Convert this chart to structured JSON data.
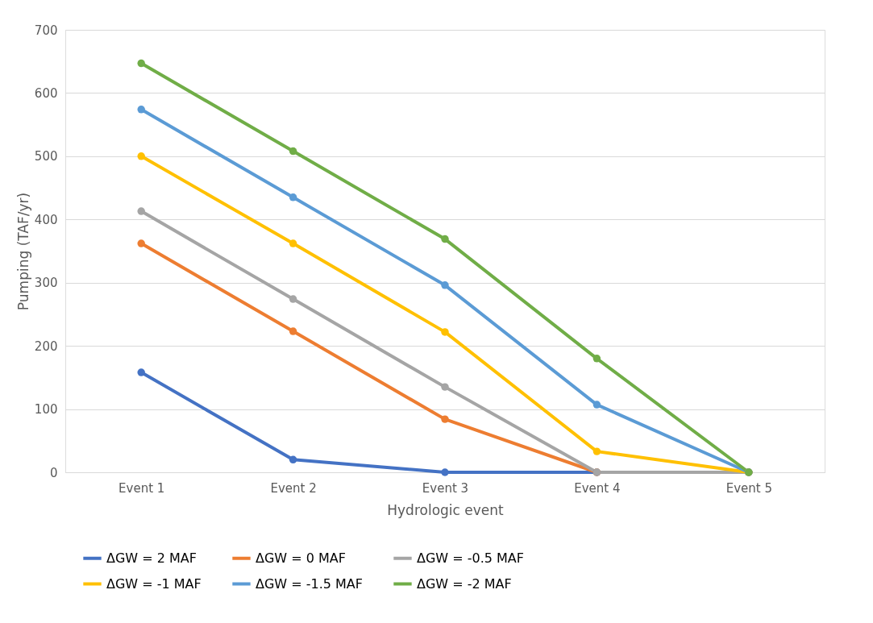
{
  "chart_data": {
    "type": "line",
    "xlabel": "Hydrologic event",
    "ylabel": "Pumping (TAF/yr)",
    "categories": [
      "Event 1",
      "Event 2",
      "Event 3",
      "Event 4",
      "Event 5"
    ],
    "series": [
      {
        "name": "ΔGW = 2 MAF",
        "color": "#4472c4",
        "values": [
          158,
          20,
          0,
          0,
          0
        ]
      },
      {
        "name": "ΔGW = 0 MAF",
        "color": "#ed7d31",
        "values": [
          362,
          223,
          84,
          0,
          0
        ]
      },
      {
        "name": "ΔGW = -0.5 MAF",
        "color": "#a5a5a5",
        "values": [
          413,
          274,
          135,
          0,
          0
        ]
      },
      {
        "name": "ΔGW = -1 MAF",
        "color": "#ffc000",
        "values": [
          500,
          362,
          222,
          33,
          0
        ]
      },
      {
        "name": "ΔGW = -1.5 MAF",
        "color": "#5b9bd5",
        "values": [
          574,
          435,
          296,
          107,
          0
        ]
      },
      {
        "name": "ΔGW = -2 MAF",
        "color": "#70ad47",
        "values": [
          647,
          508,
          369,
          180,
          0
        ]
      }
    ],
    "ylim": [
      0,
      700
    ],
    "yticks": [
      0,
      100,
      200,
      300,
      400,
      500,
      600,
      700
    ],
    "grid": "y",
    "legend": "bottom",
    "marker": "circle",
    "line_style": "solid"
  }
}
